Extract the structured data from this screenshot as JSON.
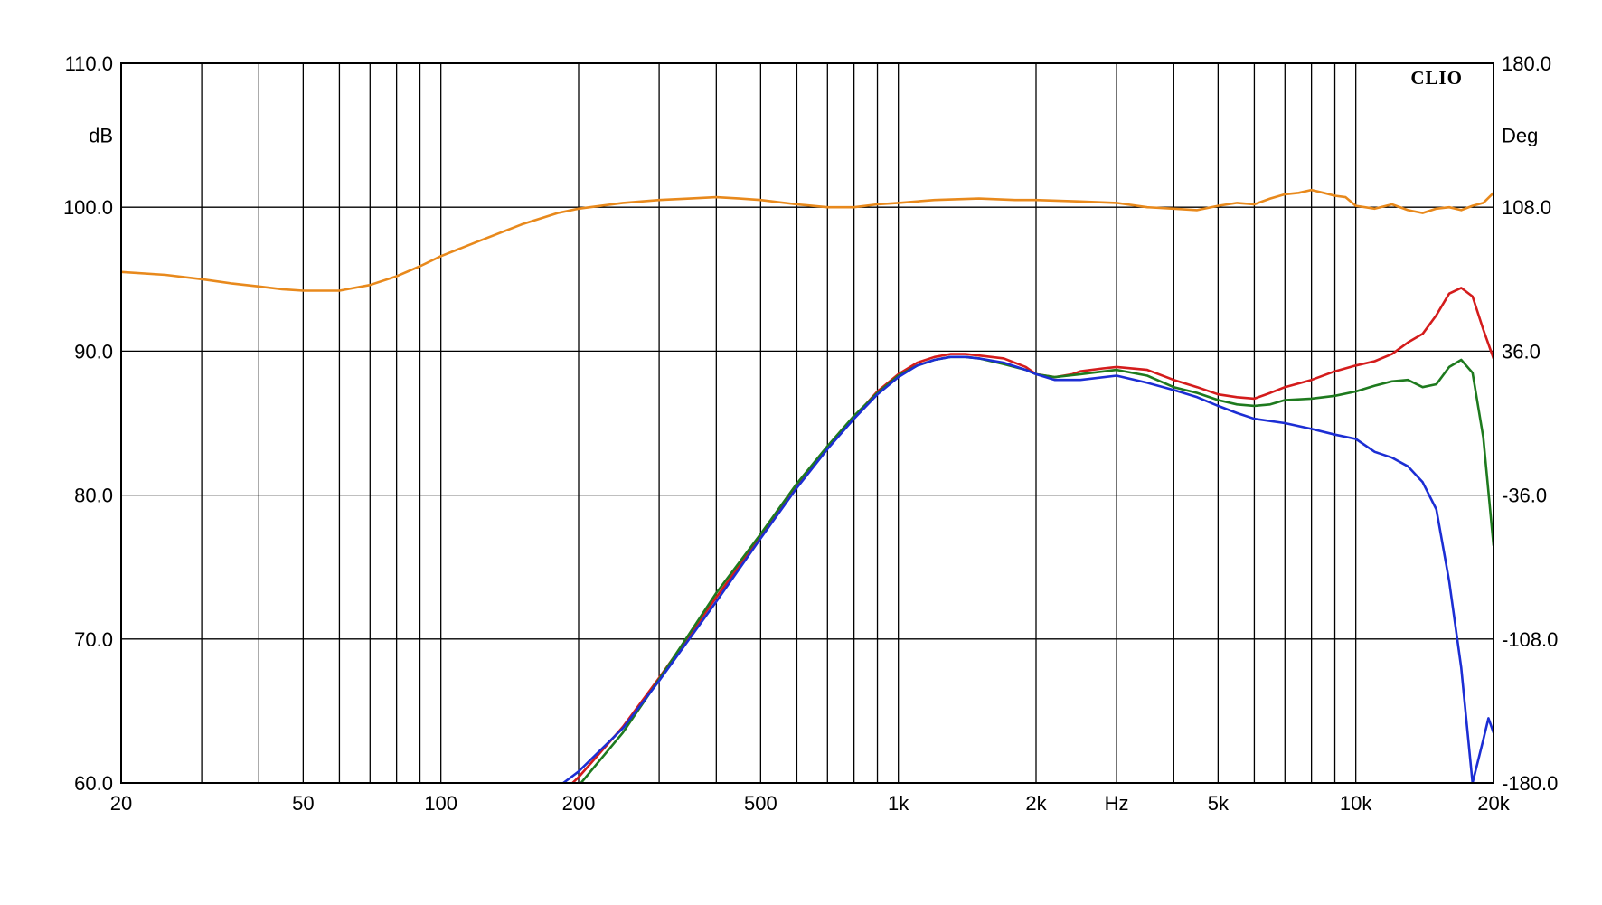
{
  "chart_data": {
    "type": "line",
    "brand": "CLIO",
    "title": "",
    "xlabel": "Hz",
    "ylabel_left": "dB",
    "ylabel_right": "Deg",
    "x_scale": "log",
    "xlim": [
      20,
      20000
    ],
    "ylim_left": [
      60,
      110
    ],
    "ylim_right": [
      -180,
      180
    ],
    "grid": true,
    "x_ticks": [
      {
        "value": 20,
        "label": "20"
      },
      {
        "value": 50,
        "label": "50"
      },
      {
        "value": 100,
        "label": "100"
      },
      {
        "value": 200,
        "label": "200"
      },
      {
        "value": 500,
        "label": "500"
      },
      {
        "value": 1000,
        "label": "1k"
      },
      {
        "value": 2000,
        "label": "2k"
      },
      {
        "value": 5000,
        "label": "5k"
      },
      {
        "value": 10000,
        "label": "10k"
      },
      {
        "value": 20000,
        "label": "20k"
      }
    ],
    "y_ticks_left": [
      {
        "value": 60,
        "label": "60.0"
      },
      {
        "value": 70,
        "label": "70.0"
      },
      {
        "value": 80,
        "label": "80.0"
      },
      {
        "value": 90,
        "label": "90.0"
      },
      {
        "value": 100,
        "label": "100.0"
      },
      {
        "value": 110,
        "label": "110.0"
      }
    ],
    "y_ticks_right": [
      {
        "value": -180,
        "label": "-180.0"
      },
      {
        "value": -108,
        "label": "-108.0"
      },
      {
        "value": -36,
        "label": "-36.0"
      },
      {
        "value": 36,
        "label": "36.0"
      },
      {
        "value": 108,
        "label": "108.0"
      },
      {
        "value": 180,
        "label": "180.0"
      }
    ],
    "series": [
      {
        "color": "#e8891c",
        "points": [
          [
            20,
            95.5
          ],
          [
            25,
            95.3
          ],
          [
            30,
            95.0
          ],
          [
            35,
            94.7
          ],
          [
            40,
            94.5
          ],
          [
            45,
            94.3
          ],
          [
            50,
            94.2
          ],
          [
            55,
            94.2
          ],
          [
            60,
            94.2
          ],
          [
            70,
            94.6
          ],
          [
            80,
            95.2
          ],
          [
            90,
            95.9
          ],
          [
            100,
            96.6
          ],
          [
            120,
            97.6
          ],
          [
            150,
            98.8
          ],
          [
            180,
            99.6
          ],
          [
            200,
            99.9
          ],
          [
            250,
            100.3
          ],
          [
            300,
            100.5
          ],
          [
            350,
            100.6
          ],
          [
            400,
            100.7
          ],
          [
            450,
            100.6
          ],
          [
            500,
            100.5
          ],
          [
            600,
            100.2
          ],
          [
            700,
            100.0
          ],
          [
            800,
            100.0
          ],
          [
            900,
            100.2
          ],
          [
            1000,
            100.3
          ],
          [
            1200,
            100.5
          ],
          [
            1500,
            100.6
          ],
          [
            1800,
            100.5
          ],
          [
            2000,
            100.5
          ],
          [
            2500,
            100.4
          ],
          [
            3000,
            100.3
          ],
          [
            3500,
            100.0
          ],
          [
            4000,
            99.9
          ],
          [
            4500,
            99.8
          ],
          [
            5000,
            100.1
          ],
          [
            5500,
            100.3
          ],
          [
            6000,
            100.2
          ],
          [
            6500,
            100.6
          ],
          [
            7000,
            100.9
          ],
          [
            7500,
            101.0
          ],
          [
            8000,
            101.2
          ],
          [
            8500,
            101.0
          ],
          [
            9000,
            100.8
          ],
          [
            9500,
            100.7
          ],
          [
            10000,
            100.1
          ],
          [
            11000,
            99.9
          ],
          [
            12000,
            100.2
          ],
          [
            13000,
            99.8
          ],
          [
            14000,
            99.6
          ],
          [
            15000,
            99.9
          ],
          [
            16000,
            100.0
          ],
          [
            17000,
            99.8
          ],
          [
            18000,
            100.1
          ],
          [
            19000,
            100.3
          ],
          [
            20000,
            101.0
          ]
        ]
      },
      {
        "color": "#d41c1c",
        "points": [
          [
            180,
            59.0
          ],
          [
            200,
            60.4
          ],
          [
            250,
            63.9
          ],
          [
            300,
            67.3
          ],
          [
            400,
            72.9
          ],
          [
            500,
            77.1
          ],
          [
            600,
            80.6
          ],
          [
            700,
            83.3
          ],
          [
            800,
            85.4
          ],
          [
            900,
            87.2
          ],
          [
            1000,
            88.4
          ],
          [
            1100,
            89.2
          ],
          [
            1200,
            89.6
          ],
          [
            1300,
            89.8
          ],
          [
            1400,
            89.8
          ],
          [
            1500,
            89.7
          ],
          [
            1700,
            89.5
          ],
          [
            1900,
            88.9
          ],
          [
            2000,
            88.4
          ],
          [
            2200,
            88.2
          ],
          [
            2400,
            88.4
          ],
          [
            2500,
            88.6
          ],
          [
            2800,
            88.8
          ],
          [
            3000,
            88.9
          ],
          [
            3500,
            88.7
          ],
          [
            4000,
            88.0
          ],
          [
            4500,
            87.5
          ],
          [
            5000,
            87.0
          ],
          [
            5500,
            86.8
          ],
          [
            6000,
            86.7
          ],
          [
            6500,
            87.1
          ],
          [
            7000,
            87.5
          ],
          [
            8000,
            88.0
          ],
          [
            9000,
            88.6
          ],
          [
            10000,
            89.0
          ],
          [
            11000,
            89.3
          ],
          [
            12000,
            89.8
          ],
          [
            13000,
            90.6
          ],
          [
            14000,
            91.2
          ],
          [
            15000,
            92.5
          ],
          [
            16000,
            94.0
          ],
          [
            17000,
            94.4
          ],
          [
            18000,
            93.8
          ],
          [
            19000,
            91.5
          ],
          [
            20000,
            89.5
          ]
        ]
      },
      {
        "color": "#1e7a1e",
        "points": [
          [
            180,
            59.0
          ],
          [
            200,
            59.8
          ],
          [
            250,
            63.5
          ],
          [
            300,
            67.2
          ],
          [
            400,
            73.2
          ],
          [
            500,
            77.3
          ],
          [
            600,
            80.8
          ],
          [
            700,
            83.4
          ],
          [
            800,
            85.5
          ],
          [
            900,
            87.1
          ],
          [
            1000,
            88.3
          ],
          [
            1100,
            89.0
          ],
          [
            1200,
            89.4
          ],
          [
            1300,
            89.6
          ],
          [
            1400,
            89.6
          ],
          [
            1500,
            89.5
          ],
          [
            1700,
            89.1
          ],
          [
            1900,
            88.7
          ],
          [
            2000,
            88.4
          ],
          [
            2200,
            88.2
          ],
          [
            2500,
            88.4
          ],
          [
            3000,
            88.7
          ],
          [
            3500,
            88.3
          ],
          [
            4000,
            87.5
          ],
          [
            4500,
            87.1
          ],
          [
            5000,
            86.6
          ],
          [
            5500,
            86.3
          ],
          [
            6000,
            86.2
          ],
          [
            6500,
            86.3
          ],
          [
            7000,
            86.6
          ],
          [
            8000,
            86.7
          ],
          [
            9000,
            86.9
          ],
          [
            10000,
            87.2
          ],
          [
            11000,
            87.6
          ],
          [
            12000,
            87.9
          ],
          [
            13000,
            88.0
          ],
          [
            14000,
            87.5
          ],
          [
            15000,
            87.7
          ],
          [
            16000,
            88.9
          ],
          [
            17000,
            89.4
          ],
          [
            18000,
            88.5
          ],
          [
            19000,
            84.0
          ],
          [
            20000,
            76.5
          ]
        ]
      },
      {
        "color": "#1c2ed4",
        "points": [
          [
            180,
            59.7
          ],
          [
            200,
            60.8
          ],
          [
            250,
            63.8
          ],
          [
            300,
            67.1
          ],
          [
            400,
            72.6
          ],
          [
            500,
            77.0
          ],
          [
            600,
            80.5
          ],
          [
            700,
            83.2
          ],
          [
            800,
            85.3
          ],
          [
            900,
            87.0
          ],
          [
            1000,
            88.2
          ],
          [
            1100,
            89.0
          ],
          [
            1200,
            89.4
          ],
          [
            1300,
            89.6
          ],
          [
            1400,
            89.6
          ],
          [
            1500,
            89.5
          ],
          [
            1700,
            89.2
          ],
          [
            1900,
            88.7
          ],
          [
            2000,
            88.4
          ],
          [
            2200,
            88.0
          ],
          [
            2500,
            88.0
          ],
          [
            3000,
            88.3
          ],
          [
            3500,
            87.8
          ],
          [
            4000,
            87.3
          ],
          [
            4500,
            86.8
          ],
          [
            5000,
            86.2
          ],
          [
            5500,
            85.7
          ],
          [
            6000,
            85.3
          ],
          [
            7000,
            85.0
          ],
          [
            8000,
            84.6
          ],
          [
            9000,
            84.2
          ],
          [
            10000,
            83.9
          ],
          [
            11000,
            83.0
          ],
          [
            12000,
            82.6
          ],
          [
            13000,
            82.0
          ],
          [
            14000,
            80.9
          ],
          [
            15000,
            79.0
          ],
          [
            16000,
            74.0
          ],
          [
            17000,
            68.0
          ],
          [
            18000,
            60.0
          ],
          [
            19000,
            63.0
          ],
          [
            19500,
            64.5
          ],
          [
            20000,
            63.5
          ]
        ]
      }
    ]
  }
}
